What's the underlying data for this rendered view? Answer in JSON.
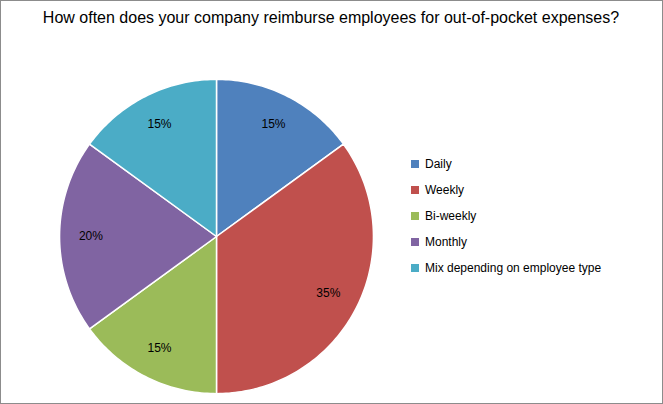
{
  "chart_data": {
    "type": "pie",
    "title": "How often does your company reimburse employees for out-of-pocket expenses?",
    "categories": [
      "Daily",
      "Weekly",
      "Bi-weekly",
      "Monthly",
      "Mix depending on employee type"
    ],
    "values": [
      15,
      35,
      15,
      20,
      15
    ],
    "value_labels": [
      "15%",
      "35%",
      "15%",
      "20%",
      "15%"
    ],
    "colors": [
      "#4f81bd",
      "#c0504d",
      "#9bbb59",
      "#8064a2",
      "#4bacc6"
    ],
    "data_labels": true,
    "legend": "right"
  }
}
